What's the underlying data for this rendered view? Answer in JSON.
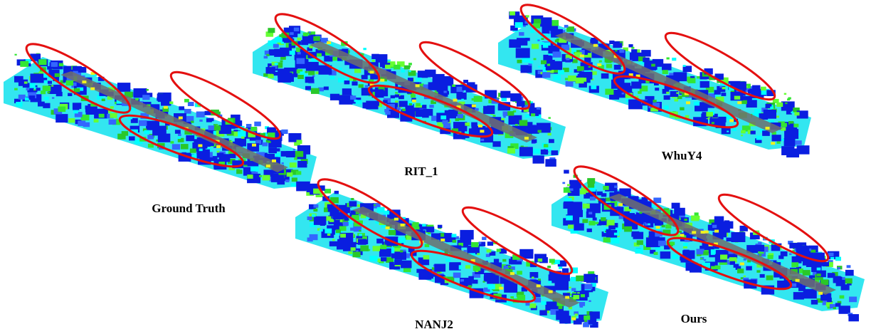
{
  "panels": [
    {
      "label": "Ground Truth"
    },
    {
      "label": "RIT_1"
    },
    {
      "label": "WhuY4"
    },
    {
      "label": "NANJ2"
    },
    {
      "label": "Ours"
    }
  ]
}
